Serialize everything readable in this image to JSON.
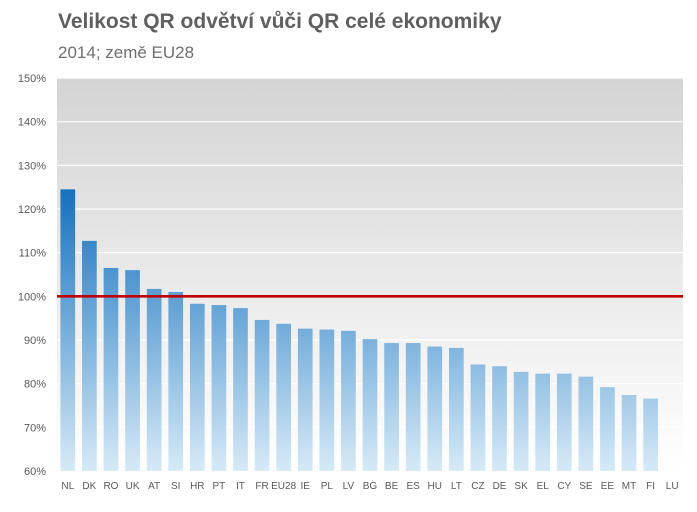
{
  "chart_data": {
    "type": "bar",
    "title": "Velikost QR odvětví vůči QR celé ekonomiky",
    "subtitle": "2014; země EU28",
    "categories": [
      "NL",
      "DK",
      "RO",
      "UK",
      "AT",
      "SI",
      "HR",
      "PT",
      "IT",
      "FR",
      "EU28",
      "IE",
      "PL",
      "LV",
      "BG",
      "BE",
      "ES",
      "HU",
      "LT",
      "CZ",
      "DE",
      "SK",
      "EL",
      "CY",
      "SE",
      "EE",
      "MT",
      "FI",
      "LU"
    ],
    "values": [
      124.5,
      112.7,
      106.5,
      106.0,
      101.7,
      101.0,
      98.3,
      98.0,
      97.3,
      94.6,
      93.7,
      92.6,
      92.4,
      92.1,
      90.2,
      89.3,
      89.3,
      88.5,
      88.2,
      84.4,
      84.0,
      82.7,
      82.3,
      82.3,
      81.6,
      79.2,
      77.4,
      76.6,
      null
    ],
    "ylim": [
      60,
      150
    ],
    "yticks": [
      60,
      70,
      80,
      90,
      100,
      110,
      120,
      130,
      140,
      150
    ],
    "ytick_suffix": "%",
    "reference_line": 100,
    "colors": {
      "bar_top": "#1470be",
      "bar_bottom": "#d6eaf7",
      "reference": "#c00000",
      "plot_top": "#d4d4d4",
      "plot_bottom": "#ffffff",
      "grid": "#ffffff"
    }
  }
}
